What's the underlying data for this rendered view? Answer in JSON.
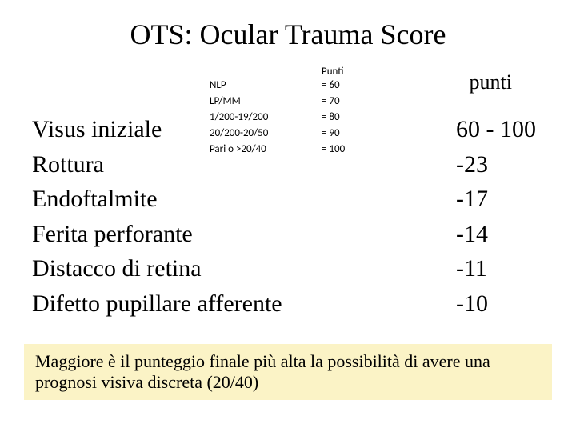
{
  "title": "OTS: Ocular Trauma Score",
  "midTable": {
    "headerPunti": "Punti",
    "rows": [
      {
        "label": "NLP",
        "value": "= 60"
      },
      {
        "label": "LP/MM",
        "value": "= 70"
      },
      {
        "label": "1/200-19/200",
        "value": "= 80"
      },
      {
        "label": "20/200-20/50",
        "value": "= 90"
      },
      {
        "label": "Pari o >20/40",
        "value": "= 100"
      }
    ]
  },
  "puntiHeader": "punti",
  "items": [
    {
      "label": "Visus iniziale",
      "score": " 60 - 100"
    },
    {
      "label": "Rottura",
      "score": "-23"
    },
    {
      "label": "Endoftalmite",
      "score": "-17"
    },
    {
      "label": "Ferita perforante",
      "score": "-14"
    },
    {
      "label": "Distacco di retina",
      "score": "-11"
    },
    {
      "label": "Difetto pupillare afferente",
      "score": "-10"
    }
  ],
  "footer": "Maggiore è il punteggio finale più alta la possibilità di avere una prognosi visiva discreta (20/40)",
  "colors": {
    "footerBg": "#fbf3c6",
    "textColor": "#000000",
    "bgColor": "#ffffff"
  }
}
